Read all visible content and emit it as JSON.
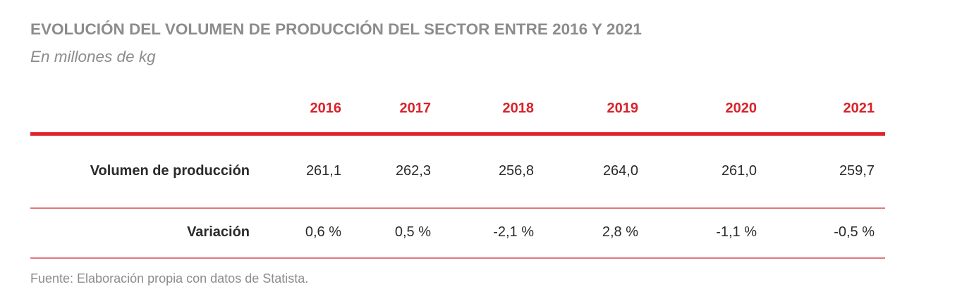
{
  "title": "EVOLUCIÓN DEL VOLUMEN DE PRODUCCIÓN DEL SECTOR ENTRE 2016 Y 2021",
  "subtitle": "En millones de kg",
  "source": "Fuente: Elaboración propia con datos de Statista.",
  "colors": {
    "accent": "#e02329",
    "text": "#2a2a2a",
    "muted": "#8c8c8c"
  },
  "chart_data": {
    "type": "table",
    "columns": [
      "2016",
      "2017",
      "2018",
      "2019",
      "2020",
      "2021"
    ],
    "rows": [
      {
        "label": "Volumen de producción",
        "values": [
          "261,1",
          "262,3",
          "256,8",
          "264,0",
          "261,0",
          "259,7"
        ]
      },
      {
        "label": "Variación",
        "values": [
          "0,6 %",
          "0,5 %",
          "-2,1 %",
          "2,8 %",
          "-1,1 %",
          "-0,5 %"
        ]
      }
    ]
  }
}
